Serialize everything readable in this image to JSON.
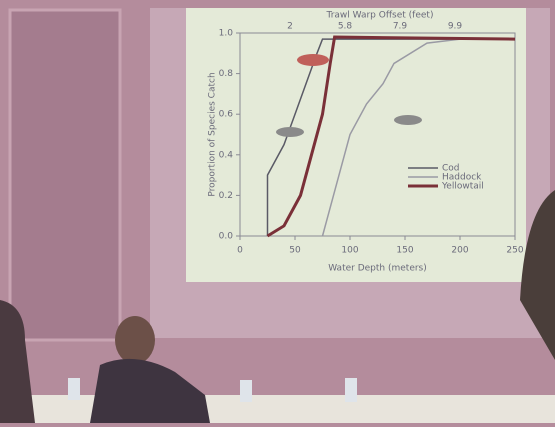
{
  "chart_data": {
    "type": "line",
    "top_axis": {
      "label": "Trawl Warp Offset (feet)",
      "ticks": [
        "2",
        "5.8",
        "7.9",
        "9.9"
      ]
    },
    "x_label": "Water Depth (meters)",
    "y_label": "Proportion of Species Catch",
    "xlim": [
      0,
      250
    ],
    "xticks": [
      0,
      50,
      100,
      150,
      200,
      250
    ],
    "ylim": [
      0,
      1
    ],
    "yticks": [
      {
        "value": 0,
        "label": "0.0"
      },
      0.2,
      0.4,
      0.6,
      0.8,
      {
        "value": 1,
        "label": "1.0"
      }
    ],
    "series": [
      {
        "name": "Cod",
        "color": "#5a5a66",
        "x": [
          25,
          25,
          40,
          50,
          60,
          70,
          75,
          250
        ],
        "values": [
          0,
          0.3,
          0.45,
          0.6,
          0.75,
          0.9,
          0.97,
          0.97
        ]
      },
      {
        "name": "Haddock",
        "color": "#9a9aa4",
        "x": [
          75,
          80,
          90,
          100,
          115,
          130,
          140,
          170,
          200,
          250
        ],
        "values": [
          0,
          0.1,
          0.3,
          0.5,
          0.65,
          0.75,
          0.85,
          0.95,
          0.97,
          0.97
        ]
      },
      {
        "name": "Yellowtail",
        "color": "#7a3038",
        "x": [
          25,
          40,
          55,
          65,
          75,
          82,
          86,
          250
        ],
        "values": [
          0,
          0.05,
          0.2,
          0.4,
          0.6,
          0.85,
          0.98,
          0.97
        ]
      }
    ]
  }
}
